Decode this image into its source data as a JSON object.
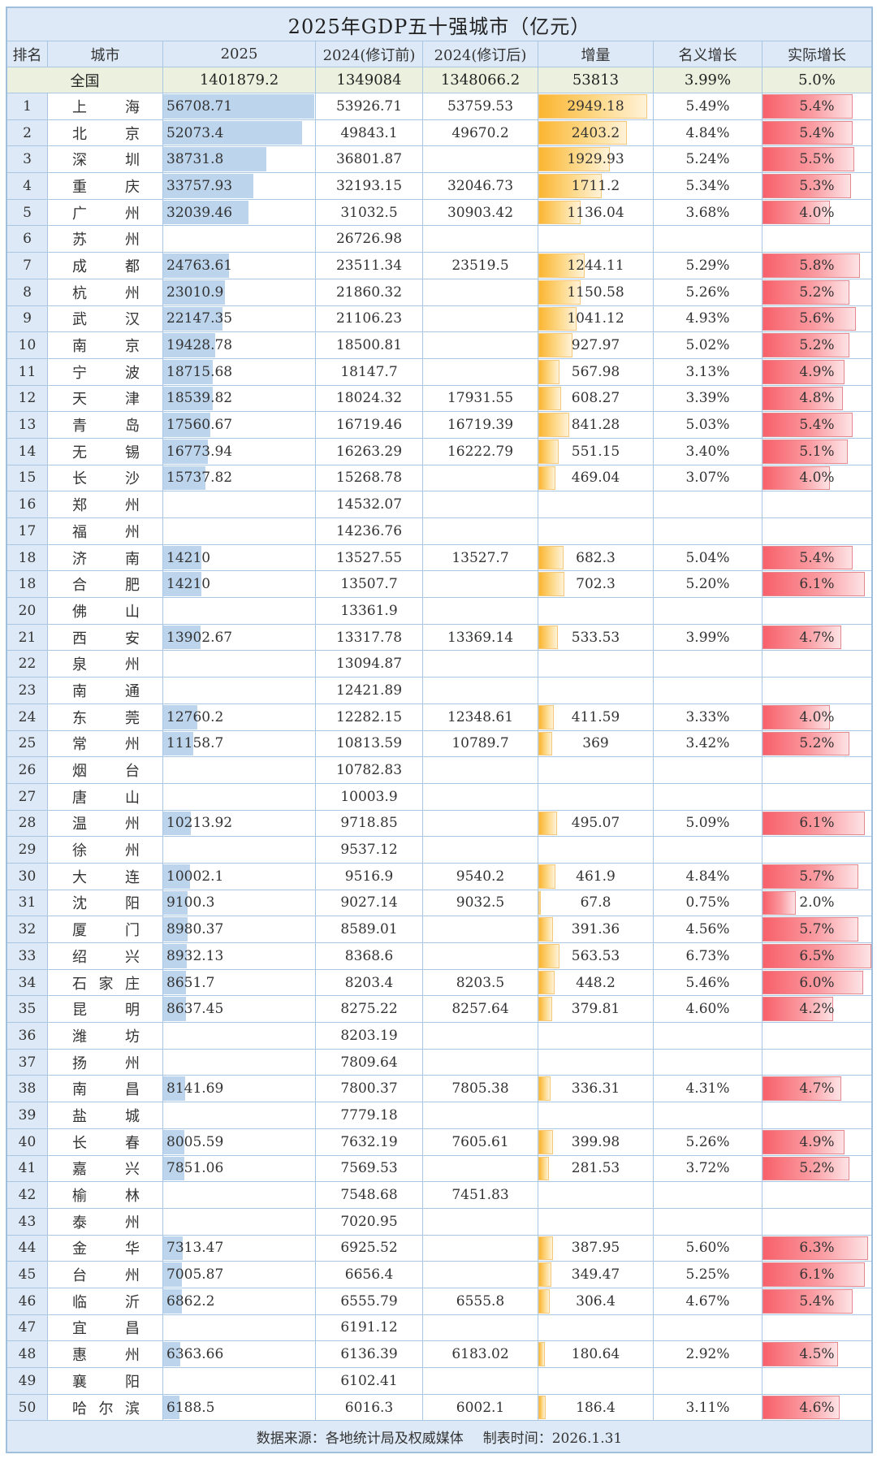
{
  "title": "2025年GDP五十强城市（亿元）",
  "headers": [
    "排名",
    "城市",
    "2025",
    "2024(修订前)",
    "2024(修订后)",
    "增量",
    "名义增长",
    "实际增长"
  ],
  "national": {
    "label": "全国",
    "gdp2025": "1401879.2",
    "gdp2024_pre": "1349084",
    "gdp2024_post": "1348066.2",
    "increase": "53813",
    "nominal": "3.99%",
    "real": "5.0%"
  },
  "footer": {
    "source": "数据来源：各地统计局及权威媒体",
    "date": "制表时间：2026.1.31"
  },
  "colors": {
    "header_bg": "#dde9f6",
    "national_bg": "#ebf1de",
    "bar_blue": "#bcd4ec",
    "bar_orange": "#fbb531",
    "bar_red": "#f8606a",
    "border": "#a9c6e3"
  },
  "rows": [
    {
      "rank": "1",
      "city": "上海",
      "gdp2025": "56708.71",
      "pre": "53926.71",
      "post": "53759.53",
      "inc": "2949.18",
      "nom": "5.49%",
      "real": "5.4%"
    },
    {
      "rank": "2",
      "city": "北京",
      "gdp2025": "52073.4",
      "pre": "49843.1",
      "post": "49670.2",
      "inc": "2403.2",
      "nom": "4.84%",
      "real": "5.4%"
    },
    {
      "rank": "3",
      "city": "深圳",
      "gdp2025": "38731.8",
      "pre": "36801.87",
      "post": "",
      "inc": "1929.93",
      "nom": "5.24%",
      "real": "5.5%"
    },
    {
      "rank": "4",
      "city": "重庆",
      "gdp2025": "33757.93",
      "pre": "32193.15",
      "post": "32046.73",
      "inc": "1711.2",
      "nom": "5.34%",
      "real": "5.3%"
    },
    {
      "rank": "5",
      "city": "广州",
      "gdp2025": "32039.46",
      "pre": "31032.5",
      "post": "30903.42",
      "inc": "1136.04",
      "nom": "3.68%",
      "real": "4.0%"
    },
    {
      "rank": "6",
      "city": "苏州",
      "gdp2025": "",
      "pre": "26726.98",
      "post": "",
      "inc": "",
      "nom": "",
      "real": ""
    },
    {
      "rank": "7",
      "city": "成都",
      "gdp2025": "24763.61",
      "pre": "23511.34",
      "post": "23519.5",
      "inc": "1244.11",
      "nom": "5.29%",
      "real": "5.8%"
    },
    {
      "rank": "8",
      "city": "杭州",
      "gdp2025": "23010.9",
      "pre": "21860.32",
      "post": "",
      "inc": "1150.58",
      "nom": "5.26%",
      "real": "5.2%"
    },
    {
      "rank": "9",
      "city": "武汉",
      "gdp2025": "22147.35",
      "pre": "21106.23",
      "post": "",
      "inc": "1041.12",
      "nom": "4.93%",
      "real": "5.6%"
    },
    {
      "rank": "10",
      "city": "南京",
      "gdp2025": "19428.78",
      "pre": "18500.81",
      "post": "",
      "inc": "927.97",
      "nom": "5.02%",
      "real": "5.2%"
    },
    {
      "rank": "11",
      "city": "宁波",
      "gdp2025": "18715.68",
      "pre": "18147.7",
      "post": "",
      "inc": "567.98",
      "nom": "3.13%",
      "real": "4.9%"
    },
    {
      "rank": "12",
      "city": "天津",
      "gdp2025": "18539.82",
      "pre": "18024.32",
      "post": "17931.55",
      "inc": "608.27",
      "nom": "3.39%",
      "real": "4.8%"
    },
    {
      "rank": "13",
      "city": "青岛",
      "gdp2025": "17560.67",
      "pre": "16719.46",
      "post": "16719.39",
      "inc": "841.28",
      "nom": "5.03%",
      "real": "5.4%"
    },
    {
      "rank": "14",
      "city": "无锡",
      "gdp2025": "16773.94",
      "pre": "16263.29",
      "post": "16222.79",
      "inc": "551.15",
      "nom": "3.40%",
      "real": "5.1%"
    },
    {
      "rank": "15",
      "city": "长沙",
      "gdp2025": "15737.82",
      "pre": "15268.78",
      "post": "",
      "inc": "469.04",
      "nom": "3.07%",
      "real": "4.0%"
    },
    {
      "rank": "16",
      "city": "郑州",
      "gdp2025": "",
      "pre": "14532.07",
      "post": "",
      "inc": "",
      "nom": "",
      "real": ""
    },
    {
      "rank": "17",
      "city": "福州",
      "gdp2025": "",
      "pre": "14236.76",
      "post": "",
      "inc": "",
      "nom": "",
      "real": ""
    },
    {
      "rank": "18",
      "city": "济南",
      "gdp2025": "14210",
      "pre": "13527.55",
      "post": "13527.7",
      "inc": "682.3",
      "nom": "5.04%",
      "real": "5.4%"
    },
    {
      "rank": "18",
      "city": "合肥",
      "gdp2025": "14210",
      "pre": "13507.7",
      "post": "",
      "inc": "702.3",
      "nom": "5.20%",
      "real": "6.1%"
    },
    {
      "rank": "20",
      "city": "佛山",
      "gdp2025": "",
      "pre": "13361.9",
      "post": "",
      "inc": "",
      "nom": "",
      "real": ""
    },
    {
      "rank": "21",
      "city": "西安",
      "gdp2025": "13902.67",
      "pre": "13317.78",
      "post": "13369.14",
      "inc": "533.53",
      "nom": "3.99%",
      "real": "4.7%"
    },
    {
      "rank": "22",
      "city": "泉州",
      "gdp2025": "",
      "pre": "13094.87",
      "post": "",
      "inc": "",
      "nom": "",
      "real": ""
    },
    {
      "rank": "23",
      "city": "南通",
      "gdp2025": "",
      "pre": "12421.89",
      "post": "",
      "inc": "",
      "nom": "",
      "real": ""
    },
    {
      "rank": "24",
      "city": "东莞",
      "gdp2025": "12760.2",
      "pre": "12282.15",
      "post": "12348.61",
      "inc": "411.59",
      "nom": "3.33%",
      "real": "4.0%"
    },
    {
      "rank": "25",
      "city": "常州",
      "gdp2025": "11158.7",
      "pre": "10813.59",
      "post": "10789.7",
      "inc": "369",
      "nom": "3.42%",
      "real": "5.2%"
    },
    {
      "rank": "26",
      "city": "烟台",
      "gdp2025": "",
      "pre": "10782.83",
      "post": "",
      "inc": "",
      "nom": "",
      "real": ""
    },
    {
      "rank": "27",
      "city": "唐山",
      "gdp2025": "",
      "pre": "10003.9",
      "post": "",
      "inc": "",
      "nom": "",
      "real": ""
    },
    {
      "rank": "28",
      "city": "温州",
      "gdp2025": "10213.92",
      "pre": "9718.85",
      "post": "",
      "inc": "495.07",
      "nom": "5.09%",
      "real": "6.1%"
    },
    {
      "rank": "29",
      "city": "徐州",
      "gdp2025": "",
      "pre": "9537.12",
      "post": "",
      "inc": "",
      "nom": "",
      "real": ""
    },
    {
      "rank": "30",
      "city": "大连",
      "gdp2025": "10002.1",
      "pre": "9516.9",
      "post": "9540.2",
      "inc": "461.9",
      "nom": "4.84%",
      "real": "5.7%"
    },
    {
      "rank": "31",
      "city": "沈阳",
      "gdp2025": "9100.3",
      "pre": "9027.14",
      "post": "9032.5",
      "inc": "67.8",
      "nom": "0.75%",
      "real": "2.0%"
    },
    {
      "rank": "32",
      "city": "厦门",
      "gdp2025": "8980.37",
      "pre": "8589.01",
      "post": "",
      "inc": "391.36",
      "nom": "4.56%",
      "real": "5.7%"
    },
    {
      "rank": "33",
      "city": "绍兴",
      "gdp2025": "8932.13",
      "pre": "8368.6",
      "post": "",
      "inc": "563.53",
      "nom": "6.73%",
      "real": "6.5%"
    },
    {
      "rank": "34",
      "city": "石家庄",
      "gdp2025": "8651.7",
      "pre": "8203.4",
      "post": "8203.5",
      "inc": "448.2",
      "nom": "5.46%",
      "real": "6.0%"
    },
    {
      "rank": "35",
      "city": "昆明",
      "gdp2025": "8637.45",
      "pre": "8275.22",
      "post": "8257.64",
      "inc": "379.81",
      "nom": "4.60%",
      "real": "4.2%"
    },
    {
      "rank": "36",
      "city": "潍坊",
      "gdp2025": "",
      "pre": "8203.19",
      "post": "",
      "inc": "",
      "nom": "",
      "real": ""
    },
    {
      "rank": "37",
      "city": "扬州",
      "gdp2025": "",
      "pre": "7809.64",
      "post": "",
      "inc": "",
      "nom": "",
      "real": ""
    },
    {
      "rank": "38",
      "city": "南昌",
      "gdp2025": "8141.69",
      "pre": "7800.37",
      "post": "7805.38",
      "inc": "336.31",
      "nom": "4.31%",
      "real": "4.7%"
    },
    {
      "rank": "39",
      "city": "盐城",
      "gdp2025": "",
      "pre": "7779.18",
      "post": "",
      "inc": "",
      "nom": "",
      "real": ""
    },
    {
      "rank": "40",
      "city": "长春",
      "gdp2025": "8005.59",
      "pre": "7632.19",
      "post": "7605.61",
      "inc": "399.98",
      "nom": "5.26%",
      "real": "4.9%"
    },
    {
      "rank": "41",
      "city": "嘉兴",
      "gdp2025": "7851.06",
      "pre": "7569.53",
      "post": "",
      "inc": "281.53",
      "nom": "3.72%",
      "real": "5.2%"
    },
    {
      "rank": "42",
      "city": "榆林",
      "gdp2025": "",
      "pre": "7548.68",
      "post": "7451.83",
      "inc": "",
      "nom": "",
      "real": ""
    },
    {
      "rank": "43",
      "city": "泰州",
      "gdp2025": "",
      "pre": "7020.95",
      "post": "",
      "inc": "",
      "nom": "",
      "real": ""
    },
    {
      "rank": "44",
      "city": "金华",
      "gdp2025": "7313.47",
      "pre": "6925.52",
      "post": "",
      "inc": "387.95",
      "nom": "5.60%",
      "real": "6.3%"
    },
    {
      "rank": "45",
      "city": "台州",
      "gdp2025": "7005.87",
      "pre": "6656.4",
      "post": "",
      "inc": "349.47",
      "nom": "5.25%",
      "real": "6.1%"
    },
    {
      "rank": "46",
      "city": "临沂",
      "gdp2025": "6862.2",
      "pre": "6555.79",
      "post": "6555.8",
      "inc": "306.4",
      "nom": "4.67%",
      "real": "5.4%"
    },
    {
      "rank": "47",
      "city": "宜昌",
      "gdp2025": "",
      "pre": "6191.12",
      "post": "",
      "inc": "",
      "nom": "",
      "real": ""
    },
    {
      "rank": "48",
      "city": "惠州",
      "gdp2025": "6363.66",
      "pre": "6136.39",
      "post": "6183.02",
      "inc": "180.64",
      "nom": "2.92%",
      "real": "4.5%"
    },
    {
      "rank": "49",
      "city": "襄阳",
      "gdp2025": "",
      "pre": "6102.41",
      "post": "",
      "inc": "",
      "nom": "",
      "real": ""
    },
    {
      "rank": "50",
      "city": "哈尔滨",
      "gdp2025": "6188.5",
      "pre": "6016.3",
      "post": "6002.1",
      "inc": "186.4",
      "nom": "3.11%",
      "real": "4.6%"
    }
  ],
  "chart_data": {
    "type": "table",
    "title": "2025年GDP五十强城市（亿元）",
    "columns": [
      "排名",
      "城市",
      "2025",
      "2024(修订前)",
      "2024(修订后)",
      "增量",
      "名义增长",
      "实际增长"
    ],
    "data_bars": {
      "2025": "blue",
      "增量": "orange",
      "实际增长": "red"
    },
    "national": [
      "全国",
      1401879.2,
      1349084,
      1348066.2,
      53813,
      "3.99%",
      "5.0%"
    ],
    "categories": [
      "上海",
      "北京",
      "深圳",
      "重庆",
      "广州",
      "苏州",
      "成都",
      "杭州",
      "武汉",
      "南京",
      "宁波",
      "天津",
      "青岛",
      "无锡",
      "长沙",
      "郑州",
      "福州",
      "济南",
      "合肥",
      "佛山",
      "西安",
      "泉州",
      "南通",
      "东莞",
      "常州",
      "烟台",
      "唐山",
      "温州",
      "徐州",
      "大连",
      "沈阳",
      "厦门",
      "绍兴",
      "石家庄",
      "昆明",
      "潍坊",
      "扬州",
      "南昌",
      "盐城",
      "长春",
      "嘉兴",
      "榆林",
      "泰州",
      "金华",
      "台州",
      "临沂",
      "宜昌",
      "惠州",
      "襄阳",
      "哈尔滨"
    ],
    "series": [
      {
        "name": "2025",
        "values": [
          56708.71,
          52073.4,
          38731.8,
          33757.93,
          32039.46,
          null,
          24763.61,
          23010.9,
          22147.35,
          19428.78,
          18715.68,
          18539.82,
          17560.67,
          16773.94,
          15737.82,
          null,
          null,
          14210,
          14210,
          null,
          13902.67,
          null,
          null,
          12760.2,
          11158.7,
          null,
          null,
          10213.92,
          null,
          10002.1,
          9100.3,
          8980.37,
          8932.13,
          8651.7,
          8637.45,
          null,
          null,
          8141.69,
          null,
          8005.59,
          7851.06,
          null,
          null,
          7313.47,
          7005.87,
          6862.2,
          null,
          6363.66,
          null,
          6188.5
        ]
      },
      {
        "name": "2024(修订前)",
        "values": [
          53926.71,
          49843.1,
          36801.87,
          32193.15,
          31032.5,
          26726.98,
          23511.34,
          21860.32,
          21106.23,
          18500.81,
          18147.7,
          18024.32,
          16719.46,
          16263.29,
          15268.78,
          14532.07,
          14236.76,
          13527.55,
          13507.7,
          13361.9,
          13317.78,
          13094.87,
          12421.89,
          12282.15,
          10813.59,
          10782.83,
          10003.9,
          9718.85,
          9537.12,
          9516.9,
          9027.14,
          8589.01,
          8368.6,
          8203.4,
          8275.22,
          8203.19,
          7809.64,
          7800.37,
          7779.18,
          7632.19,
          7569.53,
          7548.68,
          7020.95,
          6925.52,
          6656.4,
          6555.79,
          6191.12,
          6136.39,
          6102.41,
          6016.3
        ]
      },
      {
        "name": "2024(修订后)",
        "values": [
          53759.53,
          49670.2,
          null,
          32046.73,
          30903.42,
          null,
          23519.5,
          null,
          null,
          null,
          null,
          17931.55,
          16719.39,
          16222.79,
          null,
          null,
          null,
          13527.7,
          null,
          null,
          13369.14,
          null,
          null,
          12348.61,
          10789.7,
          null,
          null,
          null,
          null,
          9540.2,
          9032.5,
          null,
          null,
          8203.5,
          8257.64,
          null,
          null,
          7805.38,
          null,
          7605.61,
          null,
          7451.83,
          null,
          null,
          null,
          6555.8,
          null,
          6183.02,
          null,
          6002.1
        ]
      },
      {
        "name": "增量",
        "values": [
          2949.18,
          2403.2,
          1929.93,
          1711.2,
          1136.04,
          null,
          1244.11,
          1150.58,
          1041.12,
          927.97,
          567.98,
          608.27,
          841.28,
          551.15,
          469.04,
          null,
          null,
          682.3,
          702.3,
          null,
          533.53,
          null,
          null,
          411.59,
          369,
          null,
          null,
          495.07,
          null,
          461.9,
          67.8,
          391.36,
          563.53,
          448.2,
          379.81,
          null,
          null,
          336.31,
          null,
          399.98,
          281.53,
          null,
          null,
          387.95,
          349.47,
          306.4,
          null,
          180.64,
          null,
          186.4
        ]
      },
      {
        "name": "名义增长(%)",
        "values": [
          5.49,
          4.84,
          5.24,
          5.34,
          3.68,
          null,
          5.29,
          5.26,
          4.93,
          5.02,
          3.13,
          3.39,
          5.03,
          3.4,
          3.07,
          null,
          null,
          5.04,
          5.2,
          null,
          3.99,
          null,
          null,
          3.33,
          3.42,
          null,
          null,
          5.09,
          null,
          4.84,
          0.75,
          4.56,
          6.73,
          5.46,
          4.6,
          null,
          null,
          4.31,
          null,
          5.26,
          3.72,
          null,
          null,
          5.6,
          5.25,
          4.67,
          null,
          2.92,
          null,
          3.11
        ]
      },
      {
        "name": "实际增长(%)",
        "values": [
          5.4,
          5.4,
          5.5,
          5.3,
          4.0,
          null,
          5.8,
          5.2,
          5.6,
          5.2,
          4.9,
          4.8,
          5.4,
          5.1,
          4.0,
          null,
          null,
          5.4,
          6.1,
          null,
          4.7,
          null,
          null,
          4.0,
          5.2,
          null,
          null,
          6.1,
          null,
          5.7,
          2.0,
          5.7,
          6.5,
          6.0,
          4.2,
          null,
          null,
          4.7,
          null,
          4.9,
          5.2,
          null,
          null,
          6.3,
          6.1,
          5.4,
          null,
          4.5,
          null,
          4.6
        ]
      }
    ],
    "footer": "数据来源：各地统计局及权威媒体  制表时间：2026.1.31"
  }
}
